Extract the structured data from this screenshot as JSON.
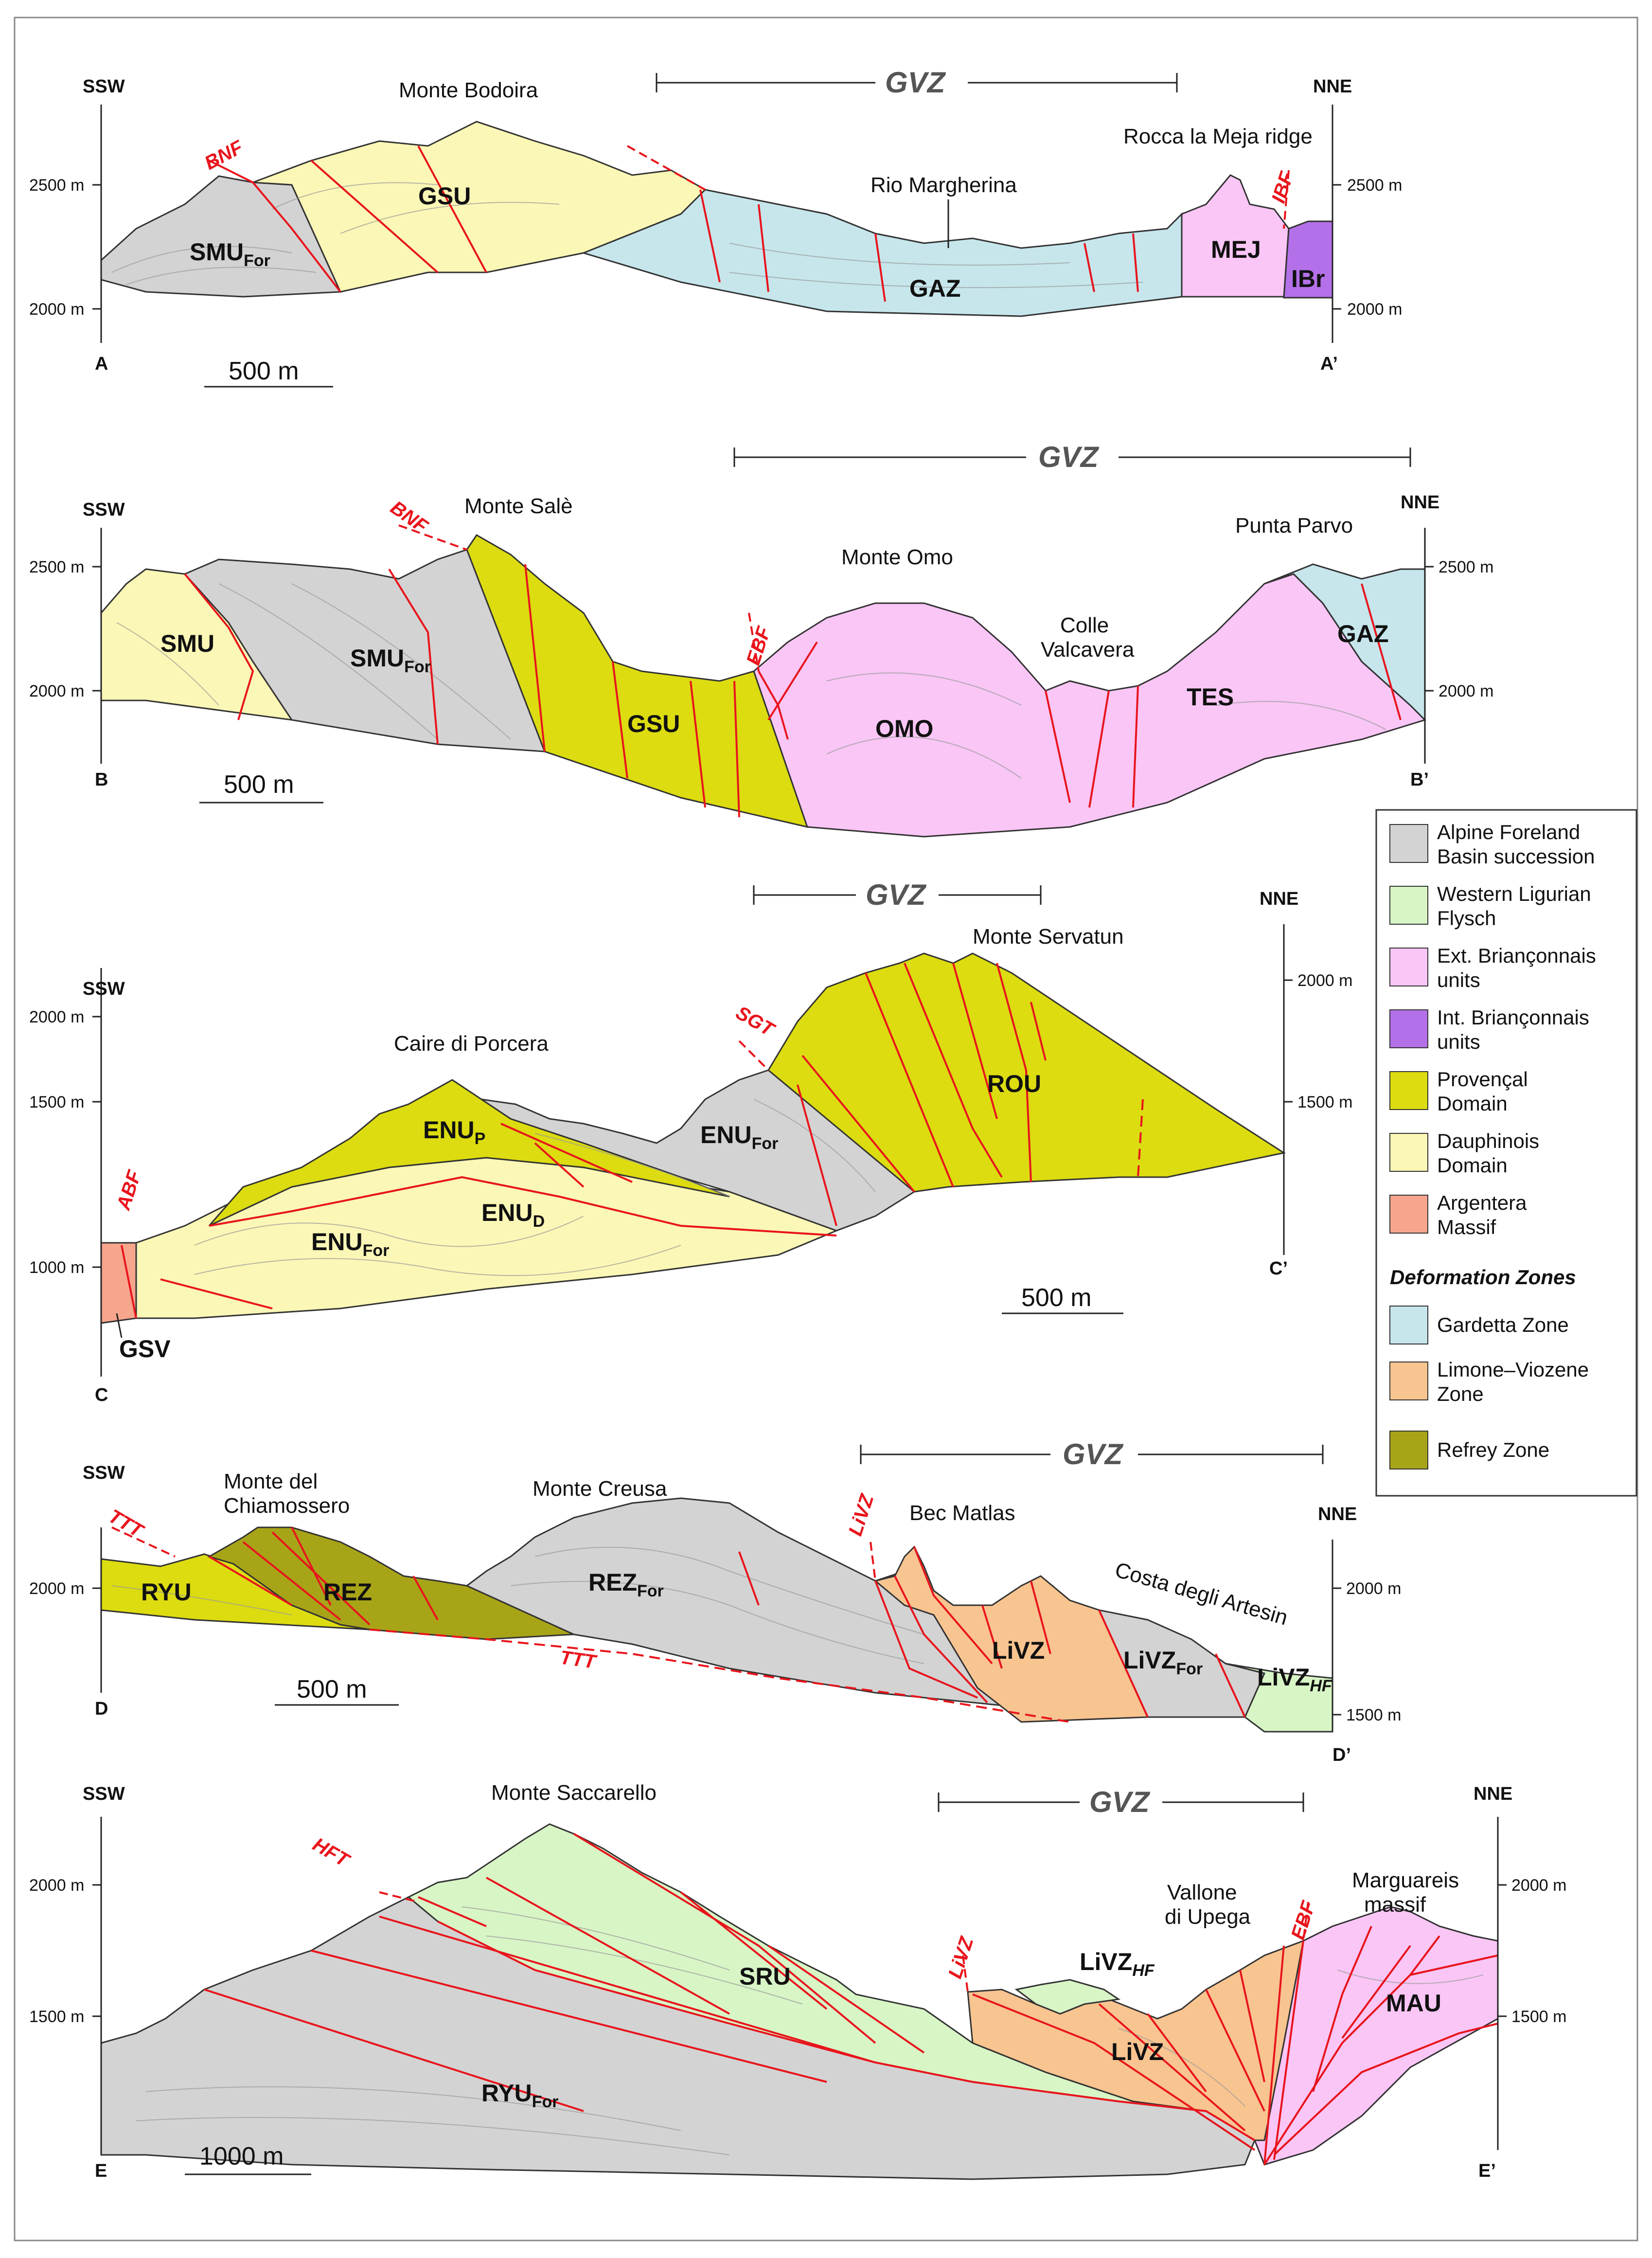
{
  "colors": {
    "alpine_foreland": "#d3d3d3",
    "western_ligurian_flysch": "#d8f5c6",
    "ext_brianconnais": "#f9c6f6",
    "int_brianconnais": "#b470e8",
    "provencal": "#dcdc10",
    "dauphinois": "#fbf7b6",
    "argentera": "#f7a68e",
    "gardetta_zone": "#c6e6ec",
    "limone_viozene_zone": "#f8c490",
    "refrey_zone": "#a8a418",
    "fault": "#e8141c",
    "gvz_text": "#555555"
  },
  "gvz_label": "GVZ",
  "sections": {
    "a": {
      "left_end": "SSW",
      "right_end": "NNE",
      "left_corner": "A",
      "right_corner": "A’",
      "scale": "500 m",
      "ticks_left": [
        "2500 m",
        "2000 m"
      ],
      "ticks_right": [
        "2500 m",
        "2000 m"
      ],
      "places": [
        "Monte Bodoira",
        "Rio Margherina",
        "Rocca la Meja ridge"
      ],
      "faults": [
        "BNF",
        "IBF"
      ],
      "units": [
        {
          "main": "SMU",
          "sub": "For"
        },
        {
          "main": "GSU",
          "sub": ""
        },
        {
          "main": "GAZ",
          "sub": ""
        },
        {
          "main": "MEJ",
          "sub": ""
        },
        {
          "main": "IBr",
          "sub": ""
        }
      ]
    },
    "b": {
      "left_end": "SSW",
      "right_end": "NNE",
      "left_corner": "B",
      "right_corner": "B’",
      "scale": "500 m",
      "ticks_left": [
        "2500 m",
        "2000 m"
      ],
      "ticks_right": [
        "2500 m",
        "2000 m"
      ],
      "places": [
        "Monte Salè",
        "Monte Omo",
        "Colle",
        "Valcavera",
        "Punta Parvo"
      ],
      "faults": [
        "BNF",
        "EBF"
      ],
      "units": [
        {
          "main": "SMU",
          "sub": ""
        },
        {
          "main": "SMU",
          "sub": "For"
        },
        {
          "main": "GSU",
          "sub": ""
        },
        {
          "main": "OMO",
          "sub": ""
        },
        {
          "main": "TES",
          "sub": ""
        },
        {
          "main": "GAZ",
          "sub": ""
        }
      ]
    },
    "c": {
      "left_end": "SSW",
      "right_end": "NNE",
      "left_corner": "C",
      "right_corner": "C’",
      "scale": "500 m",
      "ticks_left": [
        "2000 m",
        "1500 m",
        "1000 m"
      ],
      "ticks_right": [
        "2000 m",
        "1500 m"
      ],
      "places": [
        "Caire di Porcera",
        "Monte Servatun"
      ],
      "faults": [
        "SGT",
        "ABF"
      ],
      "units": [
        {
          "main": "ENU",
          "sub": "P"
        },
        {
          "main": "ENU",
          "sub": "For"
        },
        {
          "main": "ROU",
          "sub": ""
        },
        {
          "main": "ENU",
          "sub": "For"
        },
        {
          "main": "ENU",
          "sub": "D"
        },
        {
          "main": "GSV",
          "sub": ""
        }
      ]
    },
    "d": {
      "left_end": "SSW",
      "right_end": "NNE",
      "left_corner": "D",
      "right_corner": "D’",
      "scale": "500 m",
      "ticks_left": [
        "2000 m"
      ],
      "ticks_right": [
        "2000 m",
        "1500 m"
      ],
      "places": [
        "Monte del",
        "Chiamossero",
        "Monte Creusa",
        "Bec Matlas",
        "Costa degli Artesin"
      ],
      "faults": [
        "TTT",
        "LiVZ",
        "TTT"
      ],
      "units": [
        {
          "main": "RYU",
          "sub": ""
        },
        {
          "main": "REZ",
          "sub": ""
        },
        {
          "main": "REZ",
          "sub": "For"
        },
        {
          "main": "LiVZ",
          "sub": ""
        },
        {
          "main": "LiVZ",
          "sub": "For"
        },
        {
          "main": "LiVZ",
          "sub": "HF"
        }
      ]
    },
    "e": {
      "left_end": "SSW",
      "right_end": "NNE",
      "left_corner": "E",
      "right_corner": "E’",
      "scale": "1000 m",
      "ticks_left": [
        "2000 m",
        "1500 m"
      ],
      "ticks_right": [
        "2000 m",
        "1500 m"
      ],
      "places": [
        "Monte Saccarello",
        "Vallone",
        "di Upega",
        "Marguareis",
        "massif"
      ],
      "faults": [
        "HFT",
        "LiVZ",
        "EBF"
      ],
      "units": [
        {
          "main": "SRU",
          "sub": ""
        },
        {
          "main": "RYU",
          "sub": "For"
        },
        {
          "main": "LiVZ",
          "sub": "HF"
        },
        {
          "main": "LiVZ",
          "sub": ""
        },
        {
          "main": "MAU",
          "sub": ""
        }
      ]
    }
  },
  "legend": {
    "items": [
      {
        "lines": [
          "Alpine Foreland",
          "Basin succession"
        ],
        "color": "#d3d3d3"
      },
      {
        "lines": [
          "Western Ligurian",
          "Flysch"
        ],
        "color": "#d8f5c6"
      },
      {
        "lines": [
          "Ext. Briançonnais",
          "units"
        ],
        "color": "#f9c6f6"
      },
      {
        "lines": [
          "Int. Briançonnais",
          "units"
        ],
        "color": "#b470e8"
      },
      {
        "lines": [
          "Provençal",
          "Domain"
        ],
        "color": "#dcdc10"
      },
      {
        "lines": [
          "Dauphinois",
          "Domain"
        ],
        "color": "#fbf7b6"
      },
      {
        "lines": [
          "Argentera",
          "Massif"
        ],
        "color": "#f7a68e"
      }
    ],
    "deformation_heading": "Deformation Zones",
    "zones": [
      {
        "lines": [
          "Gardetta Zone"
        ],
        "color": "#c6e6ec"
      },
      {
        "lines": [
          "Limone–Viozene",
          "Zone"
        ],
        "color": "#f8c490"
      },
      {
        "lines": [
          "Refrey Zone"
        ],
        "color": "#a8a418"
      }
    ]
  }
}
